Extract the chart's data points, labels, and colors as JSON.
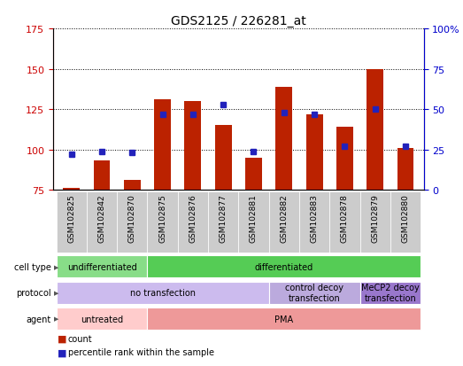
{
  "title": "GDS2125 / 226281_at",
  "samples": [
    "GSM102825",
    "GSM102842",
    "GSM102870",
    "GSM102875",
    "GSM102876",
    "GSM102877",
    "GSM102881",
    "GSM102882",
    "GSM102883",
    "GSM102878",
    "GSM102879",
    "GSM102880"
  ],
  "count_values": [
    76,
    93,
    81,
    131,
    130,
    115,
    95,
    139,
    122,
    114,
    150,
    101
  ],
  "percentile_values": [
    22,
    24,
    23,
    47,
    47,
    53,
    24,
    48,
    47,
    27,
    50,
    27
  ],
  "ylim_left": [
    75,
    175
  ],
  "ylim_right": [
    0,
    100
  ],
  "yticks_left": [
    75,
    100,
    125,
    150,
    175
  ],
  "yticks_right": [
    0,
    25,
    50,
    75,
    100
  ],
  "ytick_labels_right": [
    "0",
    "25",
    "50",
    "75",
    "100%"
  ],
  "bar_color": "#bb2200",
  "dot_color": "#2222bb",
  "grid_color": "#555555",
  "cell_type_groups": [
    {
      "label": "undifferentiated",
      "start": 0,
      "end": 3,
      "color": "#88dd88"
    },
    {
      "label": "differentiated",
      "start": 3,
      "end": 12,
      "color": "#55cc55"
    }
  ],
  "protocol_groups": [
    {
      "label": "no transfection",
      "start": 0,
      "end": 7,
      "color": "#ccbbee"
    },
    {
      "label": "control decoy\ntransfection",
      "start": 7,
      "end": 10,
      "color": "#bbaadd"
    },
    {
      "label": "MeCP2 decoy\ntransfection",
      "start": 10,
      "end": 12,
      "color": "#9977cc"
    }
  ],
  "agent_groups": [
    {
      "label": "untreated",
      "start": 0,
      "end": 3,
      "color": "#ffcccc"
    },
    {
      "label": "PMA",
      "start": 3,
      "end": 12,
      "color": "#ee9999"
    }
  ],
  "legend_items": [
    {
      "label": "count",
      "color": "#bb2200"
    },
    {
      "label": "percentile rank within the sample",
      "color": "#2222bb"
    }
  ]
}
